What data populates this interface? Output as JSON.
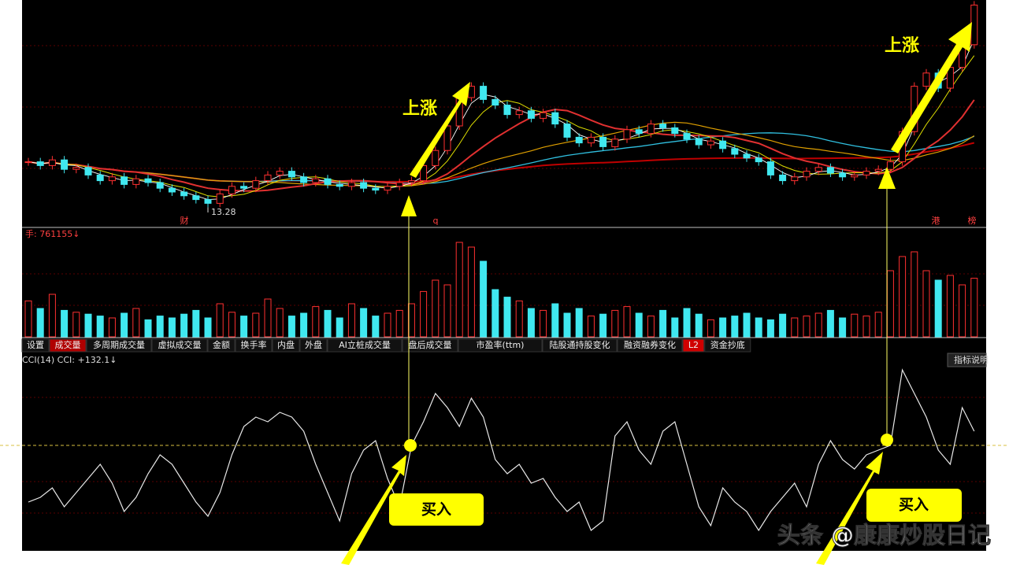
{
  "price_panel": {
    "low_label": "13.28",
    "markers": [
      "财",
      "q",
      "港",
      "榜"
    ],
    "close": [
      15.6,
      15.4,
      15.7,
      15.2,
      15.3,
      14.9,
      14.6,
      14.8,
      14.4,
      14.7,
      14.5,
      14.2,
      14.0,
      13.8,
      13.6,
      13.4,
      13.9,
      14.3,
      14.2,
      14.6,
      14.9,
      15.1,
      14.8,
      14.5,
      14.7,
      14.4,
      14.3,
      14.5,
      14.2,
      14.1,
      14.3,
      14.5,
      14.6,
      15.4,
      16.2,
      17.5,
      19.0,
      19.6,
      18.9,
      18.6,
      18.1,
      18.3,
      17.9,
      18.2,
      17.6,
      16.9,
      16.6,
      16.9,
      16.4,
      16.8,
      17.3,
      17.1,
      17.6,
      17.4,
      17.1,
      16.8,
      16.5,
      16.7,
      16.3,
      16.0,
      15.8,
      15.6,
      14.9,
      14.6,
      14.8,
      15.1,
      15.3,
      15.0,
      14.8,
      14.9,
      15.1,
      15.2,
      15.6,
      17.2,
      19.6,
      20.3,
      19.5,
      20.6,
      21.8,
      23.9
    ]
  },
  "volume_panel": {
    "label": "手: 761155↓",
    "values": [
      38,
      30,
      45,
      28,
      26,
      24,
      22,
      20,
      25,
      30,
      18,
      22,
      20,
      24,
      28,
      20,
      35,
      26,
      22,
      25,
      40,
      30,
      22,
      25,
      32,
      28,
      20,
      35,
      30,
      22,
      25,
      28,
      35,
      48,
      60,
      55,
      100,
      95,
      80,
      50,
      42,
      38,
      30,
      28,
      35,
      25,
      30,
      22,
      24,
      28,
      32,
      25,
      22,
      28,
      20,
      30,
      24,
      18,
      20,
      22,
      25,
      20,
      18,
      24,
      20,
      22,
      25,
      28,
      20,
      24,
      22,
      26,
      70,
      85,
      90,
      70,
      60,
      65,
      55,
      62
    ]
  },
  "tabs": [
    "设置",
    "成交量",
    "多周期成交量",
    "虚拟成交量",
    "金额",
    "换手率",
    "内盘",
    "外盘",
    "AI立桩成交量",
    "盘后成交量",
    "市盈率(ttm)",
    "陆股通持股变化",
    "融资融券变化",
    "L2",
    "资金抄底"
  ],
  "cci_panel": {
    "label": "CCI(14) CCI: +132.1↓",
    "help": "指标说明",
    "values": [
      -20,
      -10,
      10,
      -30,
      0,
      30,
      60,
      20,
      -40,
      -10,
      40,
      80,
      60,
      20,
      -20,
      -50,
      0,
      80,
      140,
      160,
      150,
      170,
      160,
      130,
      60,
      0,
      -60,
      40,
      90,
      110,
      30,
      -30,
      100,
      150,
      210,
      180,
      140,
      200,
      160,
      70,
      40,
      60,
      20,
      30,
      -10,
      -40,
      -20,
      -80,
      -60,
      120,
      150,
      90,
      60,
      130,
      150,
      60,
      -30,
      -70,
      10,
      -20,
      -40,
      -80,
      -40,
      -10,
      20,
      -30,
      60,
      110,
      70,
      50,
      80,
      90,
      100,
      260,
      210,
      160,
      90,
      60,
      180,
      130
    ]
  },
  "annotations": {
    "rise": [
      "上涨",
      "上涨"
    ],
    "buy": [
      "买入",
      "买入"
    ]
  },
  "watermark": "头条 @康康炒股日记"
}
